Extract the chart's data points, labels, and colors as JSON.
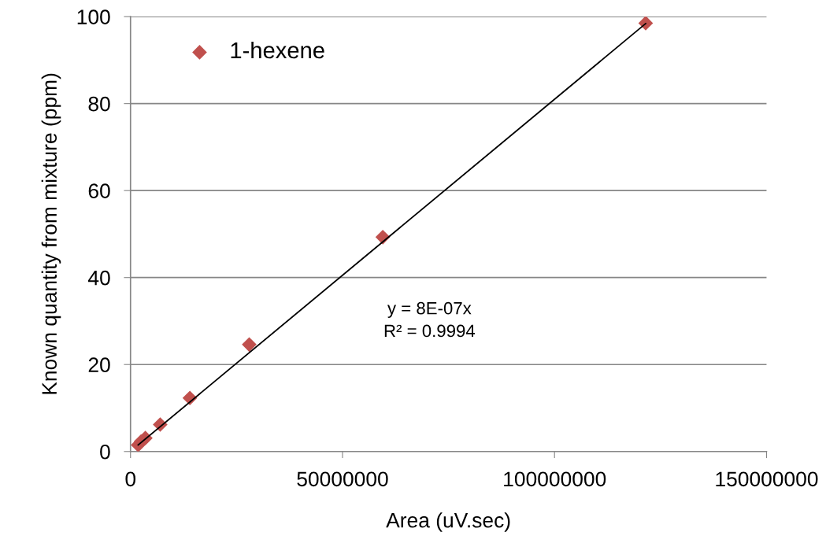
{
  "chart_data": {
    "type": "scatter",
    "xlabel": "Area (uV.sec)",
    "ylabel": "Known quantity from mixture (ppm)",
    "xlim": [
      0,
      150000000
    ],
    "xticks": [
      0,
      50000000,
      100000000,
      150000000
    ],
    "ylim": [
      0,
      100
    ],
    "yticks": [
      0,
      20,
      40,
      60,
      80,
      100
    ],
    "grid": "y",
    "legend": "top left",
    "marker": "diamond",
    "series": [
      {
        "name": "1-hexene",
        "color": "#c0504d",
        "x": [
          1800000,
          2500000,
          3500000,
          7000000,
          14000000,
          28000000,
          59500000,
          121500000
        ],
        "values": [
          1.5,
          2.3,
          3.1,
          6.2,
          12.3,
          24.6,
          49.3,
          98.5
        ]
      },
      {
        "type": "line",
        "marker": "none",
        "color": "#000000",
        "x": [
          1800000,
          121500000
        ],
        "values": [
          1.5,
          98.4
        ]
      }
    ],
    "annotations": [
      "y = 8E-07x\nR² = 0.9994"
    ]
  }
}
